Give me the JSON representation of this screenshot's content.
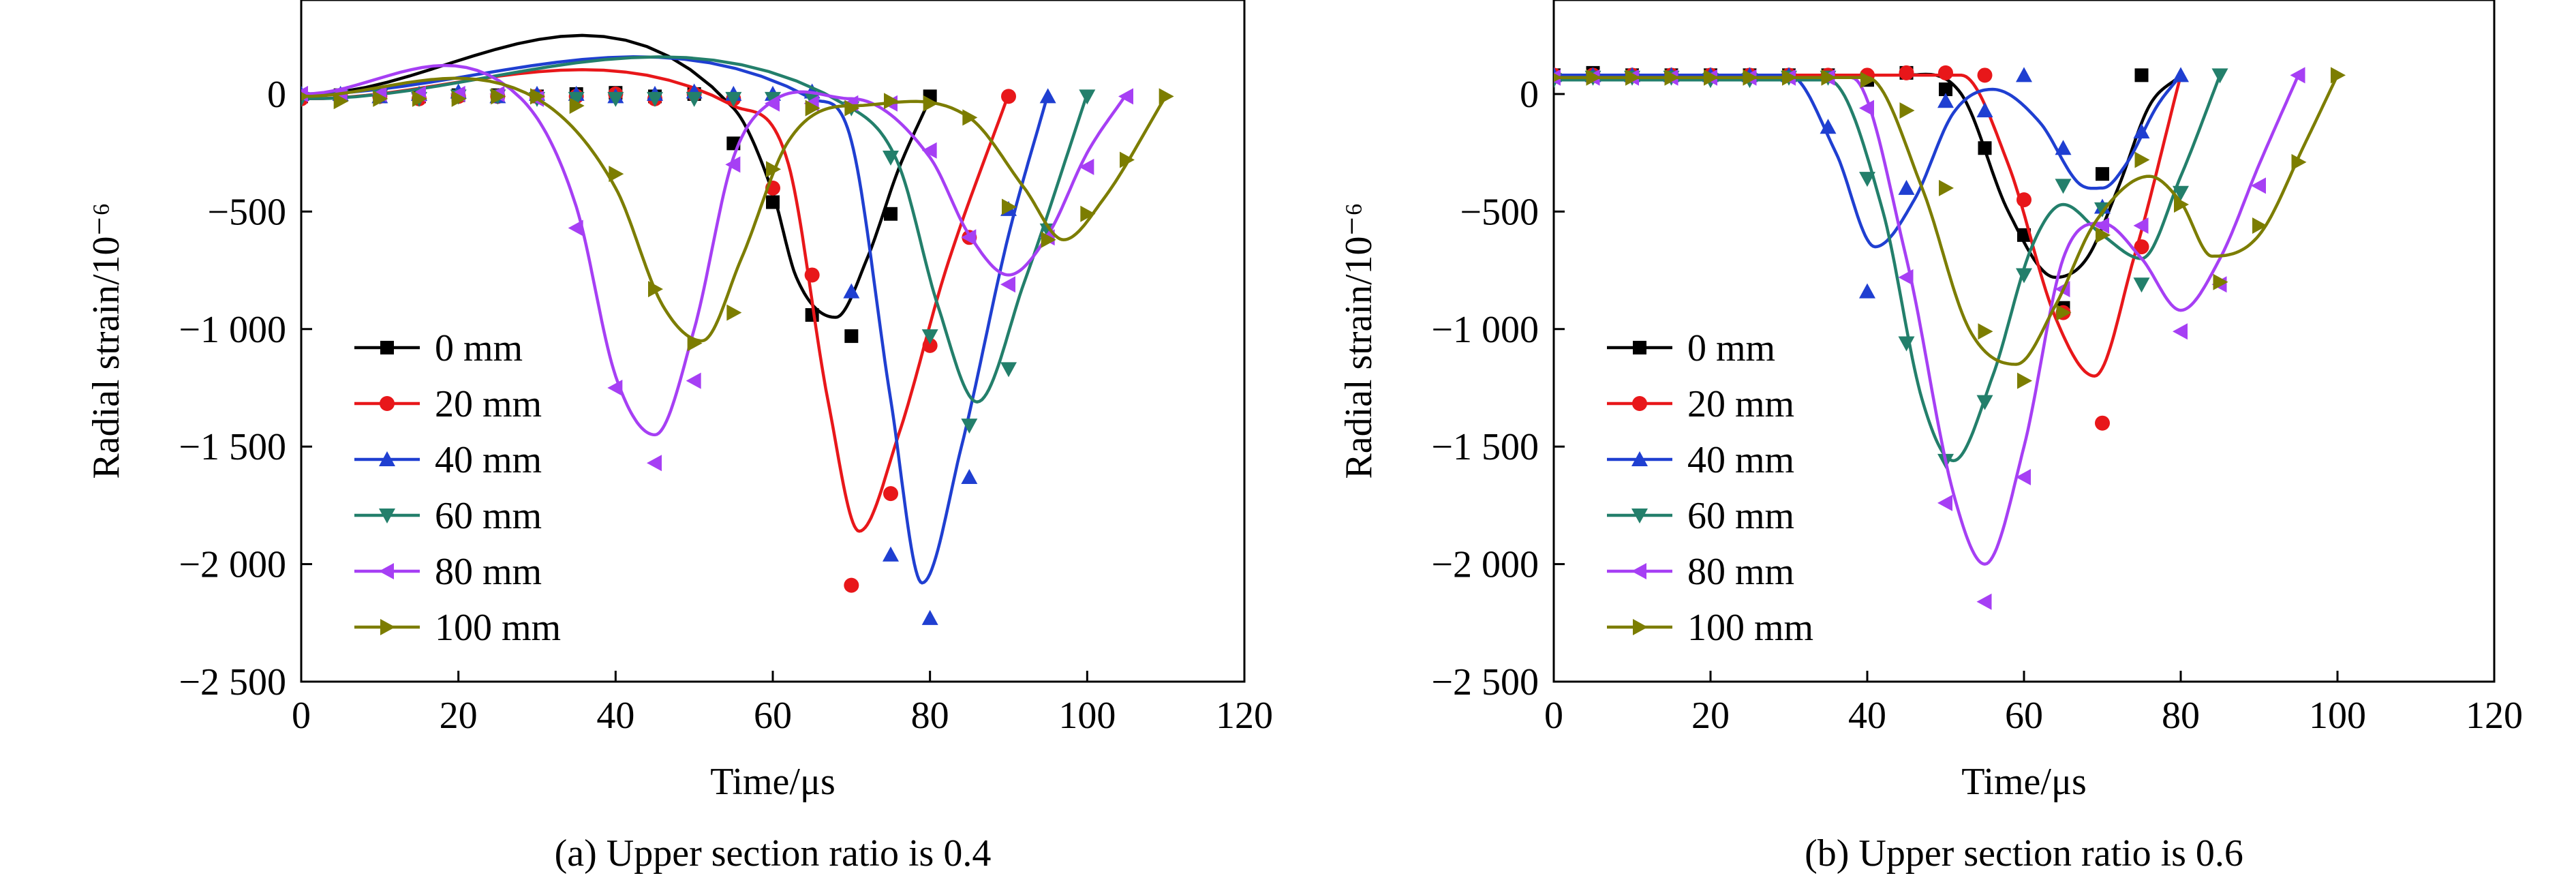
{
  "chart_data": [
    {
      "type": "line",
      "caption": "(a) Upper section ratio is 0.4",
      "xlabel": "Time/μs",
      "ylabel": "Radial strain/10⁻⁶",
      "xlim": [
        0,
        120
      ],
      "ylim": [
        -2500,
        400
      ],
      "xticks": [
        0,
        20,
        40,
        60,
        80,
        100,
        120
      ],
      "xtick_labels": [
        "0",
        "20",
        "40",
        "60",
        "80",
        "100",
        "120"
      ],
      "yticks": [
        0,
        -500,
        -1000,
        -1500,
        -2000,
        -2500
      ],
      "ytick_labels": [
        "0",
        "−500",
        "−1 000",
        "−1 500",
        "−2 000",
        "−2 500"
      ],
      "legend_position": "lower-left",
      "series": [
        {
          "name": "0 mm",
          "color": "#000000",
          "marker": "square",
          "fit": {
            "t": [
              0,
              55,
              60,
              63,
              68,
              72,
              76,
              80
            ],
            "y": [
              0,
              -60,
              -420,
              -780,
              -950,
              -700,
              -320,
              -20
            ]
          },
          "points": {
            "x": [
              0,
              5,
              10,
              15,
              20,
              25,
              30,
              35,
              40,
              45,
              50,
              55,
              60,
              65,
              70,
              75,
              80
            ],
            "y": [
              -10,
              -5,
              -10,
              -10,
              -5,
              -5,
              -10,
              0,
              5,
              -10,
              0,
              -210,
              -460,
              -940,
              -1030,
              -510,
              -10
            ]
          }
        },
        {
          "name": "20 mm",
          "color": "#e8171a",
          "marker": "circle",
          "fit": {
            "t": [
              0,
              55,
              62,
              67,
              71,
              76,
              82,
              90
            ],
            "y": [
              -20,
              -50,
              -300,
              -1300,
              -1860,
              -1450,
              -750,
              0
            ]
          },
          "points": {
            "x": [
              0,
              5,
              10,
              15,
              20,
              25,
              30,
              35,
              40,
              45,
              50,
              55,
              60,
              65,
              70,
              75,
              80,
              85,
              90
            ],
            "y": [
              -20,
              -10,
              -10,
              -20,
              -10,
              -10,
              -10,
              -10,
              0,
              -20,
              0,
              -20,
              -400,
              -770,
              -2090,
              -1700,
              -1070,
              -610,
              -10
            ]
          }
        },
        {
          "name": "40 mm",
          "color": "#1f3fd1",
          "marker": "triangle-up",
          "fit": {
            "t": [
              0,
              65,
              70,
              75,
              79,
              84,
              90,
              95
            ],
            "y": [
              0,
              -20,
              -200,
              -1300,
              -2080,
              -1500,
              -600,
              0
            ]
          },
          "points": {
            "x": [
              0,
              5,
              10,
              15,
              20,
              25,
              30,
              35,
              40,
              45,
              50,
              55,
              60,
              65,
              70,
              75,
              80,
              85,
              90,
              95
            ],
            "y": [
              0,
              0,
              -10,
              0,
              10,
              -10,
              0,
              0,
              -10,
              0,
              10,
              0,
              0,
              10,
              -840,
              -1960,
              -2230,
              -1630,
              -490,
              -10
            ]
          }
        },
        {
          "name": "60 mm",
          "color": "#237f6b",
          "marker": "triangle-down",
          "fit": {
            "t": [
              0,
              70,
              76,
              81,
              86,
              92,
              100
            ],
            "y": [
              -20,
              -60,
              -300,
              -900,
              -1310,
              -800,
              0
            ]
          },
          "points": {
            "x": [
              0,
              5,
              10,
              15,
              20,
              25,
              30,
              35,
              40,
              45,
              50,
              55,
              60,
              65,
              70,
              75,
              80,
              85,
              90,
              95,
              100
            ],
            "y": [
              -20,
              -10,
              -10,
              -20,
              -10,
              -10,
              -20,
              -20,
              -20,
              -20,
              -20,
              -20,
              -20,
              -20,
              -60,
              -270,
              -1030,
              -1410,
              -1170,
              -580,
              -10
            ]
          }
        },
        {
          "name": "80 mm",
          "color": "#a63ff4",
          "marker": "triangle-left",
          "fit": {
            "t": [
              0,
              28,
              35,
              40,
              45,
              50,
              55,
              60,
              70,
              80,
              85,
              90,
              95,
              100,
              105
            ],
            "y": [
              0,
              -20,
              -480,
              -1200,
              -1450,
              -1000,
              -270,
              -30,
              -20,
              -270,
              -600,
              -770,
              -600,
              -250,
              0
            ]
          },
          "points": {
            "x": [
              0,
              5,
              10,
              15,
              20,
              25,
              30,
              35,
              40,
              45,
              50,
              55,
              60,
              65,
              70,
              75,
              80,
              85,
              90,
              95,
              100,
              105
            ],
            "y": [
              0,
              0,
              0,
              0,
              0,
              0,
              -20,
              -570,
              -1250,
              -1570,
              -1220,
              -300,
              -40,
              -40,
              -40,
              -40,
              -240,
              -610,
              -810,
              -610,
              -310,
              -10
            ]
          }
        },
        {
          "name": "100 mm",
          "color": "#7c7d00",
          "marker": "triangle-right",
          "fit": {
            "t": [
              0,
              30,
              40,
              46,
              51,
              56,
              62,
              70,
              85,
              92,
              97,
              102,
              110
            ],
            "y": [
              -10,
              -20,
              -400,
              -900,
              -1050,
              -700,
              -200,
              -50,
              -100,
              -400,
              -620,
              -450,
              -10
            ]
          },
          "points": {
            "x": [
              0,
              5,
              10,
              15,
              20,
              25,
              30,
              35,
              40,
              45,
              50,
              55,
              60,
              65,
              70,
              75,
              80,
              85,
              90,
              95,
              100,
              105,
              110
            ],
            "y": [
              -10,
              -30,
              -20,
              -20,
              -20,
              -10,
              -10,
              -50,
              -340,
              -830,
              -1060,
              -930,
              -320,
              -60,
              -60,
              -30,
              -40,
              -100,
              -480,
              -620,
              -510,
              -280,
              -10
            ]
          }
        }
      ]
    },
    {
      "type": "line",
      "caption": "(b) Upper section ratio is 0.6",
      "xlabel": "Time/μs",
      "ylabel": "Radial strain/10⁻⁶",
      "xlim": [
        0,
        120
      ],
      "ylim": [
        -2500,
        400
      ],
      "xticks": [
        0,
        20,
        40,
        60,
        80,
        100,
        120
      ],
      "xtick_labels": [
        "0",
        "20",
        "40",
        "60",
        "80",
        "100",
        "120"
      ],
      "yticks": [
        0,
        -500,
        -1000,
        -1500,
        -2000,
        -2500
      ],
      "ytick_labels": [
        "0",
        "−500",
        "−1 000",
        "−1 500",
        "−2 000",
        "−2 500"
      ],
      "legend_position": "lower-left",
      "series": [
        {
          "name": "0 mm",
          "color": "#000000",
          "marker": "square",
          "fit": {
            "t": [
              0,
              45,
              52,
              58,
              64,
              68,
              72,
              76,
              80
            ],
            "y": [
              80,
              80,
              0,
              -500,
              -780,
              -700,
              -400,
              -50,
              80
            ]
          },
          "points": {
            "x": [
              0,
              5,
              10,
              15,
              20,
              25,
              30,
              35,
              40,
              45,
              50,
              55,
              60,
              65,
              70,
              75
            ],
            "y": [
              80,
              90,
              80,
              80,
              80,
              80,
              80,
              80,
              60,
              90,
              20,
              -230,
              -600,
              -910,
              -340,
              80
            ]
          }
        },
        {
          "name": "20 mm",
          "color": "#e8171a",
          "marker": "circle",
          "fit": {
            "t": [
              0,
              52,
              58,
              64,
              69,
              74,
              80
            ],
            "y": [
              80,
              80,
              -300,
              -950,
              -1200,
              -700,
              80
            ]
          },
          "points": {
            "x": [
              0,
              5,
              10,
              15,
              20,
              25,
              30,
              35,
              40,
              45,
              50,
              55,
              60,
              65,
              70,
              75
            ],
            "y": [
              80,
              80,
              80,
              80,
              80,
              80,
              80,
              80,
              80,
              90,
              90,
              80,
              -450,
              -930,
              -1400,
              -650
            ]
          }
        },
        {
          "name": "40 mm",
          "color": "#1f3fd1",
          "marker": "triangle-up",
          "fit": {
            "t": [
              0,
              30,
              36,
              41,
              46,
              51,
              56,
              62,
              67,
              70,
              73,
              77,
              80
            ],
            "y": [
              80,
              80,
              -250,
              -650,
              -450,
              -80,
              20,
              -120,
              -380,
              -400,
              -300,
              -50,
              80
            ]
          },
          "points": {
            "x": [
              0,
              5,
              10,
              15,
              20,
              25,
              30,
              35,
              40,
              45,
              50,
              55,
              60,
              65,
              70,
              75,
              80
            ],
            "y": [
              80,
              80,
              80,
              80,
              80,
              80,
              80,
              -140,
              -840,
              -400,
              -30,
              -70,
              80,
              -230,
              -480,
              -160,
              80
            ]
          }
        },
        {
          "name": "60 mm",
          "color": "#237f6b",
          "marker": "triangle-down",
          "fit": {
            "t": [
              0,
              35,
              42,
              47,
              51,
              56,
              61,
              65,
              70,
              75,
              80,
              85
            ],
            "y": [
              60,
              60,
              -500,
              -1300,
              -1560,
              -1200,
              -650,
              -470,
              -600,
              -700,
              -350,
              80
            ]
          },
          "points": {
            "x": [
              0,
              5,
              10,
              15,
              20,
              25,
              30,
              35,
              40,
              45,
              50,
              55,
              60,
              65,
              70,
              75,
              80,
              85
            ],
            "y": [
              60,
              70,
              70,
              70,
              60,
              60,
              70,
              70,
              -360,
              -1060,
              -1560,
              -1310,
              -770,
              -390,
              -490,
              -810,
              -420,
              80
            ]
          }
        },
        {
          "name": "80 mm",
          "color": "#a63ff4",
          "marker": "triangle-left",
          "fit": {
            "t": [
              0,
              38,
              45,
              51,
              55,
              60,
              65,
              70,
              75,
              80,
              85,
              90,
              95
            ],
            "y": [
              70,
              70,
              -700,
              -1700,
              -2000,
              -1500,
              -700,
              -550,
              -700,
              -920,
              -700,
              -300,
              80
            ]
          },
          "points": {
            "x": [
              0,
              5,
              10,
              15,
              20,
              25,
              30,
              35,
              40,
              45,
              50,
              55,
              60,
              65,
              70,
              75,
              80,
              85,
              90,
              95
            ],
            "y": [
              70,
              70,
              70,
              70,
              70,
              70,
              70,
              70,
              -60,
              -780,
              -1740,
              -2160,
              -1630,
              -830,
              -560,
              -560,
              -1010,
              -810,
              -390,
              80
            ]
          }
        },
        {
          "name": "100 mm",
          "color": "#7c7d00",
          "marker": "triangle-right",
          "fit": {
            "t": [
              0,
              40,
              47,
              53,
              59,
              64,
              69,
              76,
              80,
              84,
              90,
              96,
              100
            ],
            "y": [
              70,
              70,
              -400,
              -1000,
              -1150,
              -900,
              -550,
              -350,
              -460,
              -690,
              -600,
              -200,
              80
            ]
          },
          "points": {
            "x": [
              0,
              5,
              10,
              15,
              20,
              25,
              30,
              35,
              40,
              45,
              50,
              55,
              60,
              65,
              70,
              75,
              80,
              85,
              90,
              95,
              100
            ],
            "y": [
              70,
              70,
              70,
              70,
              70,
              70,
              70,
              70,
              60,
              -70,
              -400,
              -1010,
              -1220,
              -930,
              -600,
              -280,
              -470,
              -800,
              -560,
              -290,
              80
            ]
          }
        }
      ]
    }
  ]
}
